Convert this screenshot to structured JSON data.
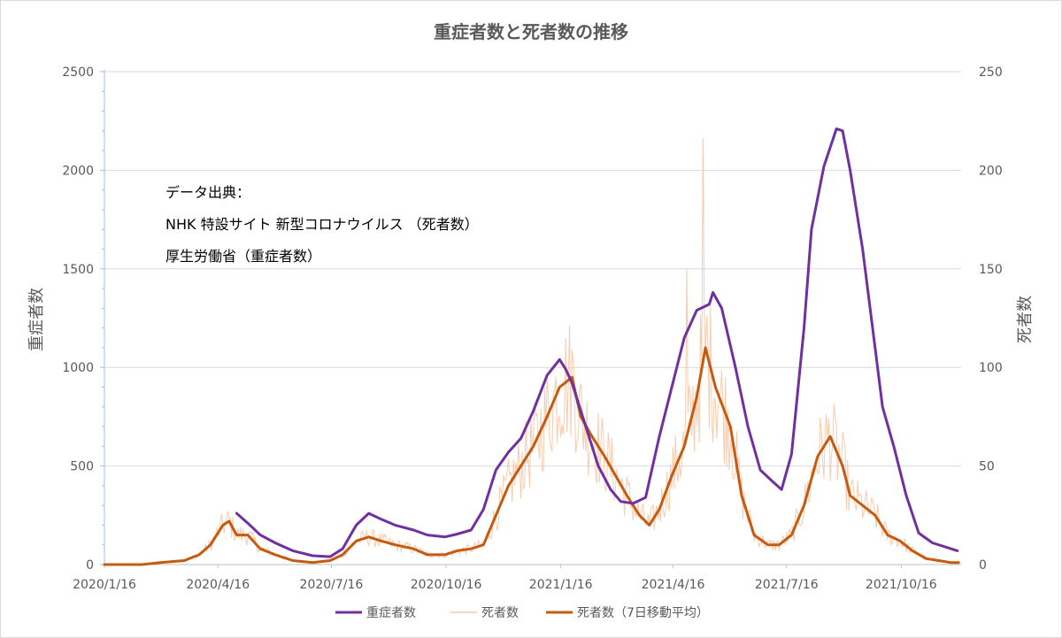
{
  "chart_data": {
    "type": "line",
    "title": "重症者数と死者数の推移",
    "ylabel": "重症者数",
    "y2label": "死者数",
    "ylim": [
      0,
      2500
    ],
    "y2lim": [
      0,
      250
    ],
    "yticks": [
      0,
      500,
      1000,
      1500,
      2000,
      2500
    ],
    "y2ticks": [
      0,
      50,
      100,
      150,
      200,
      250
    ],
    "xlim": [
      "2020-01-16",
      "2021-12-03"
    ],
    "xtick_values": [
      "2020-01-16",
      "2020-04-16",
      "2020-07-16",
      "2020-10-16",
      "2021-01-16",
      "2021-04-16",
      "2021-07-16",
      "2021-10-16"
    ],
    "xtick_labels": [
      "2020/1/16",
      "2020/4/16",
      "2020/7/16",
      "2020/10/16",
      "2021/1/16",
      "2021/4/16",
      "2021/7/16",
      "2021/10/16"
    ],
    "grid": true,
    "legend_position": "bottom",
    "annotation": [
      "データ出典：",
      "NHK 特設サイト 新型コロナウイルス （死者数）",
      "厚生労働省（重症者数）"
    ],
    "series": [
      {
        "name": "重症者数",
        "axis": "left",
        "color": "#7030a0",
        "x": [
          "2020-05-01",
          "2020-05-10",
          "2020-05-20",
          "2020-06-01",
          "2020-06-15",
          "2020-07-01",
          "2020-07-15",
          "2020-07-25",
          "2020-08-05",
          "2020-08-15",
          "2020-08-25",
          "2020-09-05",
          "2020-09-20",
          "2020-10-01",
          "2020-10-15",
          "2020-10-25",
          "2020-11-05",
          "2020-11-15",
          "2020-11-25",
          "2020-12-05",
          "2020-12-15",
          "2020-12-25",
          "2021-01-05",
          "2021-01-15",
          "2021-01-20",
          "2021-01-25",
          "2021-02-05",
          "2021-02-15",
          "2021-02-25",
          "2021-03-05",
          "2021-03-15",
          "2021-03-25",
          "2021-04-05",
          "2021-04-15",
          "2021-04-25",
          "2021-05-05",
          "2021-05-15",
          "2021-05-18",
          "2021-05-25",
          "2021-06-05",
          "2021-06-15",
          "2021-06-25",
          "2021-07-05",
          "2021-07-12",
          "2021-07-20",
          "2021-07-30",
          "2021-08-05",
          "2021-08-15",
          "2021-08-25",
          "2021-08-30",
          "2021-09-05",
          "2021-09-15",
          "2021-09-25",
          "2021-10-01",
          "2021-10-10",
          "2021-10-20",
          "2021-10-30",
          "2021-11-10",
          "2021-11-20",
          "2021-11-30"
        ],
        "y": [
          260,
          210,
          150,
          110,
          70,
          45,
          40,
          80,
          200,
          260,
          230,
          200,
          175,
          150,
          140,
          155,
          175,
          280,
          480,
          570,
          640,
          780,
          960,
          1040,
          990,
          920,
          700,
          500,
          380,
          320,
          310,
          340,
          650,
          900,
          1150,
          1290,
          1320,
          1380,
          1300,
          1000,
          700,
          480,
          420,
          380,
          560,
          1200,
          1700,
          2020,
          2210,
          2200,
          2000,
          1600,
          1100,
          800,
          600,
          350,
          160,
          110,
          90,
          70
        ]
      },
      {
        "name": "死者数",
        "axis": "right",
        "color": "#f8cbad",
        "note": "daily values fluctuate about ±25% around the 7-day average; largest spike ≈ 216 around 2021-05-10"
      },
      {
        "name": "死者数（7日移動平均）",
        "axis": "right",
        "color": "#c55a11",
        "x": [
          "2020-01-16",
          "2020-02-15",
          "2020-03-01",
          "2020-03-20",
          "2020-04-01",
          "2020-04-10",
          "2020-04-20",
          "2020-04-25",
          "2020-05-01",
          "2020-05-10",
          "2020-05-20",
          "2020-06-01",
          "2020-06-15",
          "2020-07-01",
          "2020-07-15",
          "2020-07-25",
          "2020-08-05",
          "2020-08-15",
          "2020-08-25",
          "2020-09-05",
          "2020-09-20",
          "2020-10-01",
          "2020-10-15",
          "2020-10-25",
          "2020-11-05",
          "2020-11-15",
          "2020-11-25",
          "2020-12-05",
          "2020-12-15",
          "2020-12-25",
          "2021-01-05",
          "2021-01-15",
          "2021-01-25",
          "2021-02-01",
          "2021-02-10",
          "2021-02-20",
          "2021-03-01",
          "2021-03-10",
          "2021-03-20",
          "2021-03-28",
          "2021-04-05",
          "2021-04-15",
          "2021-04-25",
          "2021-05-05",
          "2021-05-12",
          "2021-05-20",
          "2021-06-01",
          "2021-06-10",
          "2021-06-20",
          "2021-07-01",
          "2021-07-10",
          "2021-07-20",
          "2021-07-30",
          "2021-08-10",
          "2021-08-20",
          "2021-08-30",
          "2021-09-05",
          "2021-09-15",
          "2021-09-25",
          "2021-10-05",
          "2021-10-15",
          "2021-10-25",
          "2021-11-05",
          "2021-11-15",
          "2021-11-25",
          "2021-12-01"
        ],
        "y": [
          0,
          0,
          1,
          2,
          5,
          10,
          20,
          22,
          15,
          15,
          8,
          5,
          2,
          1,
          2,
          5,
          12,
          14,
          12,
          10,
          8,
          5,
          5,
          7,
          8,
          10,
          25,
          40,
          50,
          60,
          75,
          90,
          95,
          75,
          65,
          55,
          45,
          35,
          25,
          20,
          28,
          45,
          60,
          85,
          110,
          90,
          70,
          35,
          15,
          10,
          10,
          15,
          30,
          55,
          65,
          50,
          35,
          30,
          25,
          15,
          12,
          7,
          3,
          2,
          1,
          1
        ]
      }
    ]
  }
}
